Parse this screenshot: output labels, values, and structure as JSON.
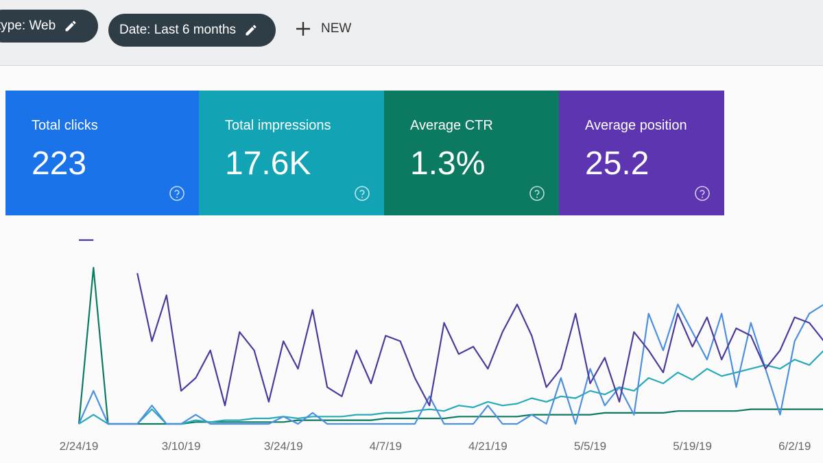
{
  "filters": {
    "chips": [
      "type: Web",
      "Date: Last 6 months"
    ],
    "new_button": "NEW"
  },
  "cards": [
    {
      "label": "Total clicks",
      "value": "223",
      "color": "#1a73e8"
    },
    {
      "label": "Total impressions",
      "value": "17.6K",
      "color": "#12a4b4"
    },
    {
      "label": "Average CTR",
      "value": "1.3%",
      "color": "#0b7a60"
    },
    {
      "label": "Average position",
      "value": "25.2",
      "color": "#5e35b1"
    }
  ],
  "chart_data": {
    "type": "line",
    "categories": [
      "2/24/19",
      null,
      null,
      null,
      null,
      null,
      null,
      "3/10/19",
      null,
      null,
      null,
      null,
      null,
      null,
      "3/24/19",
      null,
      null,
      null,
      null,
      null,
      null,
      "4/7/19",
      null,
      null,
      null,
      null,
      null,
      null,
      "4/21/19",
      null,
      null,
      null,
      null,
      null,
      null,
      "5/5/19",
      null,
      null,
      null,
      null,
      null,
      null,
      "5/19/19",
      null,
      null,
      null,
      null,
      null,
      null,
      "6/2/19",
      null,
      null,
      null
    ],
    "ylim": [
      0,
      100
    ],
    "series": [
      {
        "color": "#0b7a60",
        "values": [
          0,
          85,
          0,
          0,
          0,
          0,
          0,
          0,
          1,
          1,
          1,
          1,
          1,
          1,
          1,
          2,
          2,
          2,
          2,
          2,
          2,
          3,
          3,
          3,
          3,
          3,
          4,
          4,
          4,
          4,
          4,
          5,
          5,
          5,
          5,
          5,
          6,
          6,
          6,
          6,
          6,
          7,
          7,
          7,
          7,
          7,
          8,
          8,
          8,
          8,
          8,
          8,
          9
        ]
      },
      {
        "color": "#26a9b8",
        "values": [
          0,
          5,
          0,
          0,
          0,
          8,
          0,
          0,
          2,
          1,
          2,
          2,
          3,
          3,
          4,
          3,
          4,
          4,
          4,
          5,
          5,
          6,
          6,
          7,
          8,
          7,
          10,
          9,
          12,
          10,
          11,
          14,
          12,
          15,
          14,
          18,
          16,
          20,
          18,
          25,
          22,
          28,
          24,
          30,
          26,
          28,
          30,
          32,
          30,
          35,
          32,
          40,
          38
        ]
      },
      {
        "color": "#4a8fe0",
        "values": [
          0,
          18,
          0,
          0,
          0,
          10,
          0,
          0,
          5,
          0,
          0,
          0,
          0,
          0,
          4,
          0,
          6,
          0,
          0,
          0,
          0,
          0,
          0,
          0,
          15,
          0,
          0,
          0,
          10,
          0,
          0,
          5,
          0,
          25,
          0,
          30,
          10,
          20,
          5,
          60,
          40,
          65,
          50,
          35,
          60,
          20,
          55,
          30,
          5,
          45,
          60,
          65,
          50
        ]
      },
      {
        "color": "#4b3a9c",
        "values": [
          100,
          100,
          null,
          null,
          82,
          45,
          70,
          18,
          25,
          40,
          10,
          50,
          40,
          12,
          45,
          30,
          62,
          20,
          15,
          40,
          22,
          48,
          45,
          25,
          10,
          55,
          38,
          42,
          30,
          50,
          65,
          48,
          20,
          30,
          60,
          22,
          36,
          12,
          50,
          40,
          28,
          60,
          42,
          58,
          35,
          52,
          48,
          30,
          40,
          58,
          55,
          45,
          60
        ]
      }
    ]
  }
}
